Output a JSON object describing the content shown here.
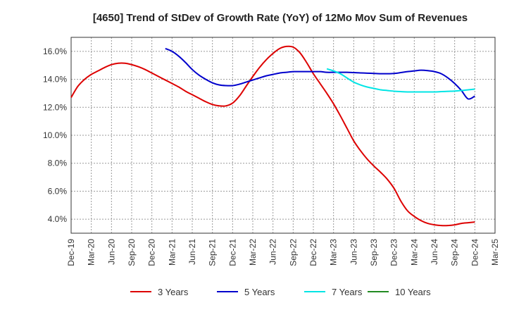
{
  "chart_data": {
    "type": "line",
    "title": "[4650]  Trend of StDev of Growth Rate (YoY) of 12Mo Mov Sum of Revenues",
    "xlabel": "",
    "ylabel": "",
    "x_tick_labels": [
      "Dec-19",
      "Mar-20",
      "Jun-20",
      "Sep-20",
      "Dec-20",
      "Mar-21",
      "Jun-21",
      "Sep-21",
      "Dec-21",
      "Mar-22",
      "Jun-22",
      "Sep-22",
      "Dec-22",
      "Mar-23",
      "Jun-23",
      "Sep-23",
      "Dec-23",
      "Mar-24",
      "Jun-24",
      "Sep-24",
      "Dec-24",
      "Mar-25"
    ],
    "y_ticks": [
      4,
      6,
      8,
      10,
      12,
      14,
      16
    ],
    "y_tick_labels": [
      "4.0%",
      "6.0%",
      "8.0%",
      "10.0%",
      "12.0%",
      "14.0%",
      "16.0%"
    ],
    "ylim": [
      3,
      17
    ],
    "x_unit": "month index from Dec-19",
    "xlim": [
      0,
      63
    ],
    "grid": true,
    "legend_position": "bottom",
    "series": [
      {
        "name": "3 Years",
        "color": "#dd0000",
        "x": [
          0,
          1,
          2,
          3,
          4,
          5,
          6,
          7,
          8,
          9,
          10,
          11,
          12,
          13,
          14,
          15,
          16,
          17,
          18,
          19,
          20,
          21,
          22,
          23,
          24,
          25,
          26,
          27,
          28,
          29,
          30,
          31,
          32,
          33,
          34,
          35,
          36,
          37,
          38,
          39,
          40,
          41,
          42,
          43,
          44,
          45,
          46,
          47,
          48,
          49,
          50,
          51,
          52,
          53,
          54,
          55,
          56,
          57,
          58,
          59,
          60
        ],
        "values": [
          12.7,
          13.5,
          14.0,
          14.35,
          14.6,
          14.85,
          15.05,
          15.15,
          15.15,
          15.05,
          14.9,
          14.7,
          14.45,
          14.2,
          13.95,
          13.7,
          13.45,
          13.15,
          12.9,
          12.65,
          12.4,
          12.2,
          12.1,
          12.1,
          12.3,
          12.8,
          13.5,
          14.2,
          14.85,
          15.4,
          15.85,
          16.2,
          16.35,
          16.3,
          15.9,
          15.2,
          14.4,
          13.7,
          13.0,
          12.25,
          11.4,
          10.5,
          9.6,
          8.9,
          8.3,
          7.8,
          7.35,
          6.85,
          6.2,
          5.3,
          4.6,
          4.2,
          3.9,
          3.7,
          3.6,
          3.55,
          3.55,
          3.6,
          3.7,
          3.75,
          3.8
        ]
      },
      {
        "name": "5 Years",
        "color": "#0000cc",
        "x": [
          14,
          15,
          16,
          17,
          18,
          19,
          20,
          21,
          22,
          23,
          24,
          25,
          26,
          27,
          28,
          29,
          30,
          31,
          32,
          33,
          34,
          35,
          36,
          37,
          38,
          39,
          40,
          41,
          42,
          43,
          44,
          45,
          46,
          47,
          48,
          49,
          50,
          51,
          52,
          53,
          54,
          55,
          56,
          57,
          58,
          59,
          60
        ],
        "values": [
          16.2,
          16.0,
          15.65,
          15.2,
          14.7,
          14.3,
          14.0,
          13.75,
          13.6,
          13.55,
          13.55,
          13.65,
          13.8,
          13.95,
          14.1,
          14.25,
          14.35,
          14.45,
          14.5,
          14.55,
          14.55,
          14.55,
          14.55,
          14.55,
          14.5,
          14.5,
          14.5,
          14.5,
          14.48,
          14.46,
          14.44,
          14.42,
          14.4,
          14.4,
          14.42,
          14.48,
          14.55,
          14.6,
          14.65,
          14.62,
          14.55,
          14.4,
          14.1,
          13.7,
          13.2,
          12.6,
          12.8
        ]
      },
      {
        "name": "7 Years",
        "color": "#00e5e5",
        "x": [
          38,
          39,
          40,
          41,
          42,
          43,
          44,
          45,
          46,
          47,
          48,
          49,
          50,
          51,
          52,
          53,
          54,
          55,
          56,
          57,
          58,
          59,
          60
        ],
        "values": [
          14.75,
          14.6,
          14.4,
          14.1,
          13.8,
          13.6,
          13.45,
          13.35,
          13.25,
          13.2,
          13.15,
          13.12,
          13.1,
          13.1,
          13.1,
          13.1,
          13.1,
          13.12,
          13.14,
          13.16,
          13.2,
          13.25,
          13.3
        ]
      },
      {
        "name": "10 Years",
        "color": "#228b22",
        "x": [],
        "values": []
      }
    ]
  }
}
